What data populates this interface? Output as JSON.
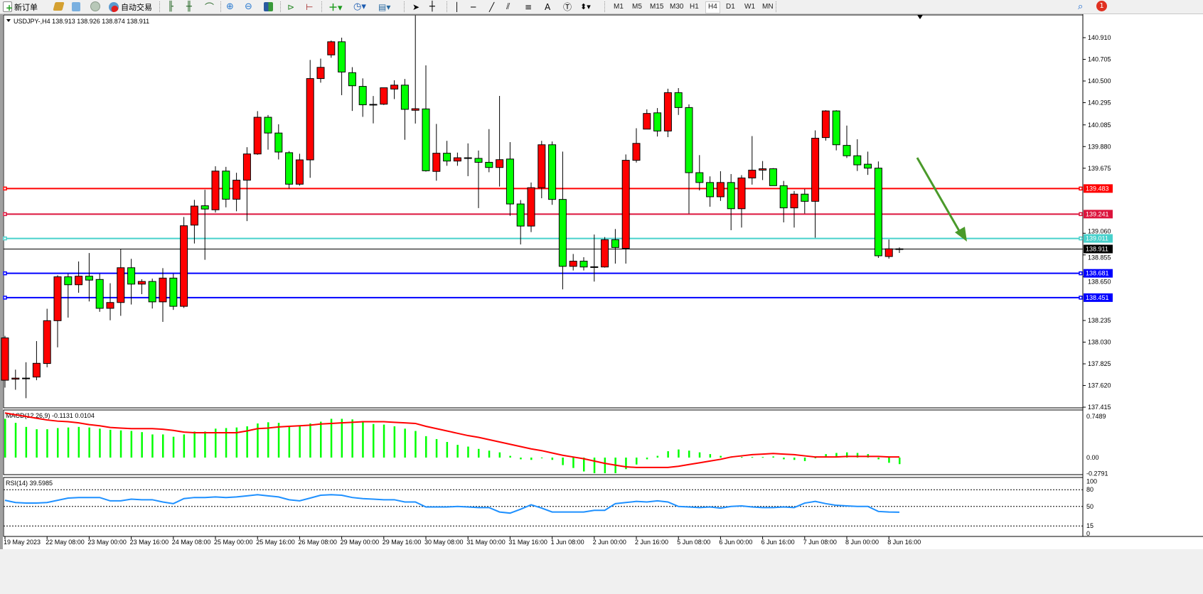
{
  "toolbar": {
    "new_order": "新订单",
    "auto_trading": "自动交易",
    "timeframes": [
      "M1",
      "M5",
      "M15",
      "M30",
      "H1",
      "H4",
      "D1",
      "W1",
      "MN"
    ],
    "selected_timeframe": "H4",
    "notification_count": "1",
    "icons": [
      "new-order-icon",
      "history-icon",
      "terminal-icon",
      "signal-icon",
      "auto-trading-icon",
      "bar-chart-icon",
      "candlestick-icon",
      "line-chart-icon",
      "zoom-in-icon",
      "zoom-out-icon",
      "tile-windows-icon",
      "autoscroll-icon",
      "chart-shift-icon",
      "indicators-icon",
      "periods-icon",
      "templates-icon",
      "cursor-icon",
      "crosshair-icon",
      "vertical-line-icon",
      "horizontal-line-icon",
      "trendline-icon",
      "equidistant-channel-icon",
      "fibonacci-icon",
      "text-icon",
      "text-label-icon",
      "arrows-icon",
      "search-icon",
      "notification-icon"
    ]
  },
  "chart_data": {
    "type": "candlestick",
    "symbol_header": "USDJPY-,H4  138.913 138.926 138.874 138.911",
    "colors": {
      "up": "#ff0000",
      "down": "#00ff00",
      "outline": "#000000",
      "background": "#ffffff"
    },
    "price_ticks": [
      "140.910",
      "140.705",
      "140.500",
      "140.295",
      "140.085",
      "139.880",
      "139.675",
      "139.060",
      "138.855",
      "138.650",
      "138.235",
      "138.030",
      "137.825",
      "137.620",
      "137.415"
    ],
    "ylim": [
      137.415,
      140.91
    ],
    "x_labels": [
      "19 May 2023",
      "22 May 08:00",
      "23 May 00:00",
      "23 May 16:00",
      "24 May 08:00",
      "25 May 00:00",
      "25 May 16:00",
      "26 May 08:00",
      "29 May 00:00",
      "29 May 16:00",
      "30 May 08:00",
      "31 May 00:00",
      "31 May 16:00",
      "1 Jun 08:00",
      "2 Jun 00:00",
      "2 Jun 16:00",
      "5 Jun 08:00",
      "6 Jun 00:00",
      "6 Jun 16:00",
      "7 Jun 08:00",
      "8 Jun 00:00",
      "8 Jun 16:00"
    ],
    "x_label_every_bars": 4,
    "ohlc": [
      [
        137.67,
        138.09,
        137.6,
        138.07
      ],
      [
        137.68,
        137.77,
        137.58,
        137.69
      ],
      [
        137.69,
        137.84,
        137.5,
        137.69
      ],
      [
        137.7,
        138.04,
        137.67,
        137.83
      ],
      [
        137.828,
        138.346,
        137.792,
        138.233
      ],
      [
        138.233,
        138.663,
        137.981,
        138.648
      ],
      [
        138.648,
        138.677,
        138.262,
        138.573
      ],
      [
        138.573,
        138.793,
        138.497,
        138.654
      ],
      [
        138.654,
        138.873,
        138.415,
        138.617
      ],
      [
        138.623,
        138.677,
        138.317,
        138.35
      ],
      [
        138.35,
        138.587,
        138.237,
        138.405
      ],
      [
        138.405,
        138.908,
        138.279,
        138.734
      ],
      [
        138.734,
        138.818,
        138.386,
        138.579
      ],
      [
        138.579,
        138.625,
        138.484,
        138.604
      ],
      [
        138.604,
        138.631,
        138.348,
        138.411
      ],
      [
        138.411,
        138.73,
        138.222,
        138.636
      ],
      [
        138.636,
        138.677,
        138.335,
        138.369
      ],
      [
        138.369,
        139.214,
        138.354,
        139.131
      ],
      [
        139.137,
        139.376,
        138.963,
        139.317
      ],
      [
        139.32,
        139.471,
        138.809,
        139.289
      ],
      [
        139.282,
        139.694,
        139.256,
        139.648
      ],
      [
        139.648,
        139.688,
        139.305,
        139.382
      ],
      [
        139.382,
        139.632,
        139.268,
        139.562
      ],
      [
        139.562,
        139.874,
        139.175,
        139.81
      ],
      [
        139.81,
        140.215,
        139.802,
        140.157
      ],
      [
        140.157,
        140.178,
        139.851,
        140.008
      ],
      [
        140.008,
        140.091,
        139.758,
        139.828
      ],
      [
        139.822,
        139.837,
        139.483,
        139.524
      ],
      [
        139.524,
        139.812,
        139.51,
        139.754
      ],
      [
        139.754,
        140.699,
        139.584,
        140.523
      ],
      [
        140.523,
        140.712,
        140.484,
        140.629
      ],
      [
        140.747,
        140.883,
        140.72,
        140.871
      ],
      [
        140.871,
        140.91,
        140.366,
        140.585
      ],
      [
        140.579,
        140.631,
        140.217,
        140.455
      ],
      [
        140.449,
        140.525,
        140.161,
        140.275
      ],
      [
        140.279,
        140.358,
        140.099,
        140.279
      ],
      [
        140.281,
        140.436,
        140.273,
        140.436
      ],
      [
        140.424,
        140.507,
        140.329,
        140.461
      ],
      [
        140.461,
        140.519,
        139.944,
        140.232
      ],
      [
        140.223,
        141.12,
        140.098,
        140.238
      ],
      [
        140.236,
        140.648,
        139.643,
        139.651
      ],
      [
        139.645,
        140.094,
        139.557,
        139.817
      ],
      [
        139.817,
        139.934,
        139.698,
        139.743
      ],
      [
        139.743,
        139.823,
        139.698,
        139.774
      ],
      [
        139.774,
        139.91,
        139.6,
        139.774
      ],
      [
        139.768,
        139.842,
        139.298,
        139.731
      ],
      [
        139.731,
        140.045,
        139.637,
        139.682
      ],
      [
        139.682,
        140.359,
        139.501,
        139.756
      ],
      [
        139.762,
        139.922,
        139.225,
        139.337
      ],
      [
        139.337,
        139.374,
        138.954,
        139.128
      ],
      [
        139.128,
        139.54,
        139.071,
        139.491
      ],
      [
        139.491,
        139.934,
        139.391,
        139.897
      ],
      [
        139.897,
        139.928,
        139.329,
        139.38
      ],
      [
        139.38,
        139.832,
        138.529,
        138.747
      ],
      [
        138.747,
        138.864,
        138.708,
        138.796
      ],
      [
        138.796,
        138.833,
        138.708,
        138.741
      ],
      [
        138.743,
        139.048,
        138.603,
        138.743
      ],
      [
        138.741,
        139.024,
        138.735,
        138.999
      ],
      [
        138.999,
        139.1,
        138.773,
        138.925
      ],
      [
        138.917,
        139.805,
        138.773,
        139.75
      ],
      [
        139.75,
        140.053,
        139.729,
        139.91
      ],
      [
        140.045,
        140.232,
        140.045,
        140.193
      ],
      [
        140.199,
        140.244,
        139.975,
        140.027
      ],
      [
        140.027,
        140.427,
        139.969,
        140.39
      ],
      [
        140.39,
        140.433,
        140.179,
        140.249
      ],
      [
        140.249,
        140.279,
        139.247,
        139.633
      ],
      [
        139.633,
        139.799,
        139.465,
        139.54
      ],
      [
        139.54,
        139.598,
        139.311,
        139.405
      ],
      [
        139.405,
        139.647,
        139.366,
        139.54
      ],
      [
        139.54,
        139.62,
        139.089,
        139.292
      ],
      [
        139.292,
        139.61,
        139.114,
        139.583
      ],
      [
        139.583,
        139.979,
        139.52,
        139.657
      ],
      [
        139.657,
        139.743,
        139.563,
        139.67
      ],
      [
        139.67,
        139.676,
        139.51,
        139.51
      ],
      [
        139.51,
        139.555,
        139.163,
        139.3
      ],
      [
        139.3,
        139.46,
        139.114,
        139.43
      ],
      [
        139.43,
        139.479,
        139.247,
        139.362
      ],
      [
        139.362,
        140.033,
        139.018,
        139.959
      ],
      [
        139.965,
        140.224,
        139.936,
        140.217
      ],
      [
        140.217,
        140.224,
        139.844,
        139.897
      ],
      [
        139.891,
        140.078,
        139.772,
        139.793
      ],
      [
        139.793,
        139.949,
        139.649,
        139.707
      ],
      [
        139.713,
        139.832,
        139.612,
        139.676
      ],
      [
        139.676,
        139.739,
        138.827,
        138.847
      ],
      [
        138.84,
        139.001,
        138.82,
        138.913
      ],
      [
        138.913,
        138.926,
        138.874,
        138.911
      ]
    ],
    "horizontal_lines": [
      {
        "price": "139.483",
        "color": "#ff0000"
      },
      {
        "price": "139.241",
        "color": "#dc143c"
      },
      {
        "price": "139.011",
        "color": "#48d1cc"
      },
      {
        "price": "138.681",
        "color": "#0000ff"
      },
      {
        "price": "138.451",
        "color": "#0000ff"
      }
    ],
    "current_price": "138.911",
    "annotation_arrow": {
      "color": "#4a9a2a",
      "direction": "down-right"
    },
    "macd": {
      "label": "MACD(12,26,9) -0.1131 0.0104",
      "ticks": [
        "0.7489",
        "0.00",
        "-0.2791"
      ],
      "ylim": [
        -0.2791,
        0.7489
      ],
      "histogram_color": "#00ff00",
      "signal_color": "#ff0000",
      "histogram": [
        0.67,
        0.6,
        0.53,
        0.49,
        0.49,
        0.51,
        0.52,
        0.53,
        0.52,
        0.5,
        0.48,
        0.47,
        0.46,
        0.44,
        0.4,
        0.4,
        0.36,
        0.4,
        0.45,
        0.45,
        0.5,
        0.51,
        0.52,
        0.54,
        0.59,
        0.61,
        0.6,
        0.54,
        0.54,
        0.59,
        0.62,
        0.67,
        0.67,
        0.66,
        0.61,
        0.58,
        0.57,
        0.54,
        0.5,
        0.46,
        0.37,
        0.32,
        0.27,
        0.22,
        0.19,
        0.15,
        0.12,
        0.09,
        0.03,
        -0.03,
        -0.04,
        -0.01,
        -0.04,
        -0.13,
        -0.18,
        -0.24,
        -0.27,
        -0.27,
        -0.27,
        -0.2,
        -0.12,
        -0.03,
        0.03,
        0.11,
        0.14,
        0.12,
        0.09,
        0.06,
        0.03,
        0.01,
        0.01,
        0.01,
        0.01,
        0.02,
        -0.03,
        -0.04,
        -0.06,
        0.0,
        0.06,
        0.08,
        0.09,
        0.08,
        0.06,
        -0.03,
        -0.09,
        -0.1131
      ],
      "signal": [
        0.77,
        0.74,
        0.71,
        0.68,
        0.65,
        0.63,
        0.62,
        0.6,
        0.57,
        0.55,
        0.52,
        0.51,
        0.5,
        0.5,
        0.5,
        0.49,
        0.47,
        0.44,
        0.43,
        0.43,
        0.43,
        0.43,
        0.43,
        0.46,
        0.5,
        0.51,
        0.53,
        0.54,
        0.55,
        0.56,
        0.58,
        0.59,
        0.6,
        0.61,
        0.62,
        0.62,
        0.62,
        0.61,
        0.6,
        0.59,
        0.54,
        0.5,
        0.46,
        0.42,
        0.38,
        0.35,
        0.31,
        0.27,
        0.23,
        0.19,
        0.15,
        0.12,
        0.08,
        0.04,
        0.01,
        -0.02,
        -0.06,
        -0.1,
        -0.13,
        -0.16,
        -0.17,
        -0.17,
        -0.17,
        -0.17,
        -0.15,
        -0.12,
        -0.09,
        -0.06,
        -0.03,
        0.01,
        0.03,
        0.05,
        0.06,
        0.07,
        0.06,
        0.05,
        0.03,
        0.01,
        0.01,
        0.01,
        0.02,
        0.02,
        0.02,
        0.02,
        0.01,
        0.0104
      ]
    },
    "rsi": {
      "label": "RSI(14) 39.5985",
      "ticks": [
        "100",
        "80",
        "50",
        "15",
        "0"
      ],
      "levels": [
        80,
        50,
        15
      ],
      "ylim": [
        0,
        100
      ],
      "color": "#1e90ff",
      "values": [
        61,
        57,
        56,
        56,
        57,
        61,
        65,
        66,
        66,
        66,
        60,
        60,
        63,
        62,
        62,
        58,
        55,
        64,
        66,
        66,
        67,
        66,
        67,
        69,
        71,
        69,
        67,
        62,
        60,
        65,
        70,
        71,
        70,
        66,
        64,
        63,
        62,
        62,
        58,
        58,
        49,
        49,
        49,
        50,
        49,
        48,
        48,
        40,
        38,
        45,
        53,
        47,
        40,
        40,
        40,
        40,
        43,
        43,
        55,
        57,
        59,
        58,
        60,
        58,
        50,
        49,
        48,
        49,
        47,
        50,
        51,
        49,
        48,
        48,
        49,
        48,
        56,
        59,
        55,
        52,
        51,
        50,
        50,
        41,
        40,
        39.5985
      ]
    }
  }
}
